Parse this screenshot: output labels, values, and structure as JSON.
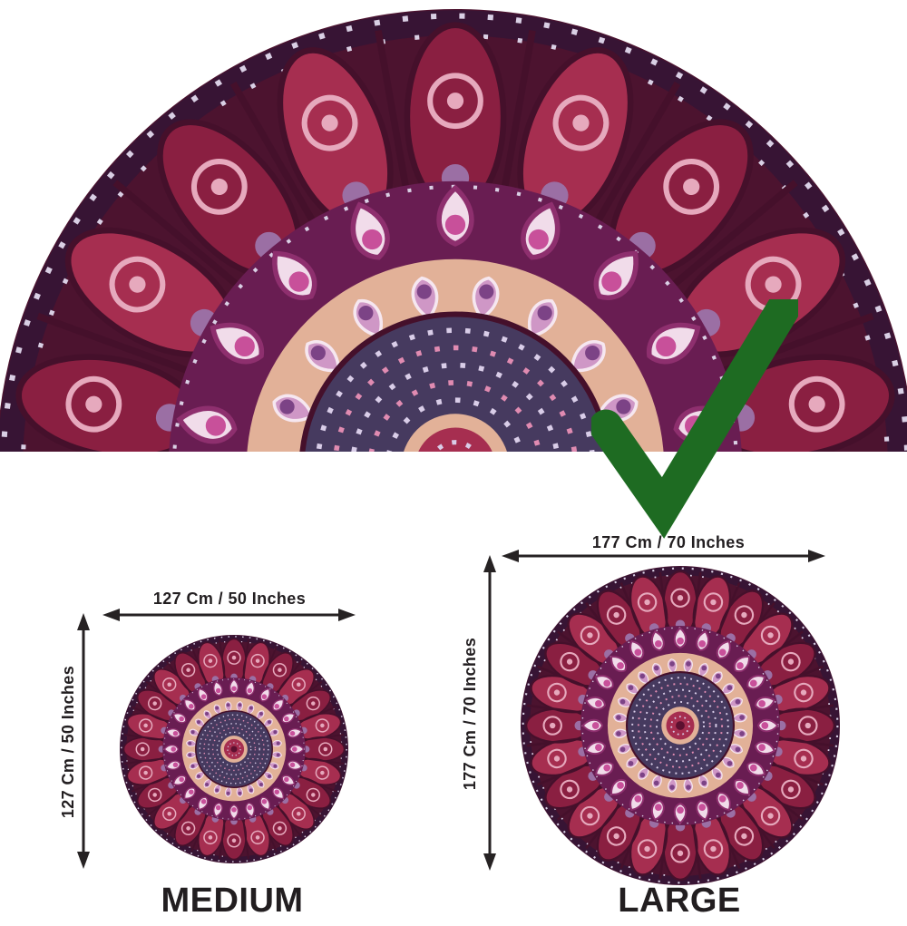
{
  "hero": {
    "image": "mandala-tapestry-top-half-closeup",
    "badge_icon": "green-checkmark"
  },
  "sizes": [
    {
      "name": "MEDIUM",
      "width_label": "127 Cm / 50 Inches",
      "height_label": "127 Cm / 50 Inches"
    },
    {
      "name": "LARGE",
      "width_label": "177 Cm / 70 Inches",
      "height_label": "177 Cm / 70 Inches"
    }
  ],
  "colors": {
    "background": "#ffffff",
    "text": "#221e20",
    "arrow": "#262223",
    "checkmark_green": "#1e6b22",
    "mandala": {
      "base": "#4c132f",
      "rim": "#371434",
      "rim_dots": "#d9cfe4",
      "petal_a": "#a62e50",
      "petal_b": "#8a1f41",
      "outline": "#45102b",
      "motif": "#e6a9bd",
      "lilac": "#9b6fa4",
      "drop_bg": "#691d52",
      "drop_fill": "#f1dcea",
      "drop_stroke": "#8e2f6e",
      "drop_dot": "#c8509a",
      "bulb_bg": "#e2b198",
      "bulb_fill": "#cf97c6",
      "bulb_stroke": "#f6e7f0",
      "bulb_dot": "#7c4386",
      "inner_bg": "#463a5f",
      "inner_dot_a": "#d9cde8",
      "inner_dot_b": "#e08bb1",
      "center_ring": "#e2b198",
      "center_fill": "#a62e50",
      "center_dot": "#5c1030"
    }
  }
}
